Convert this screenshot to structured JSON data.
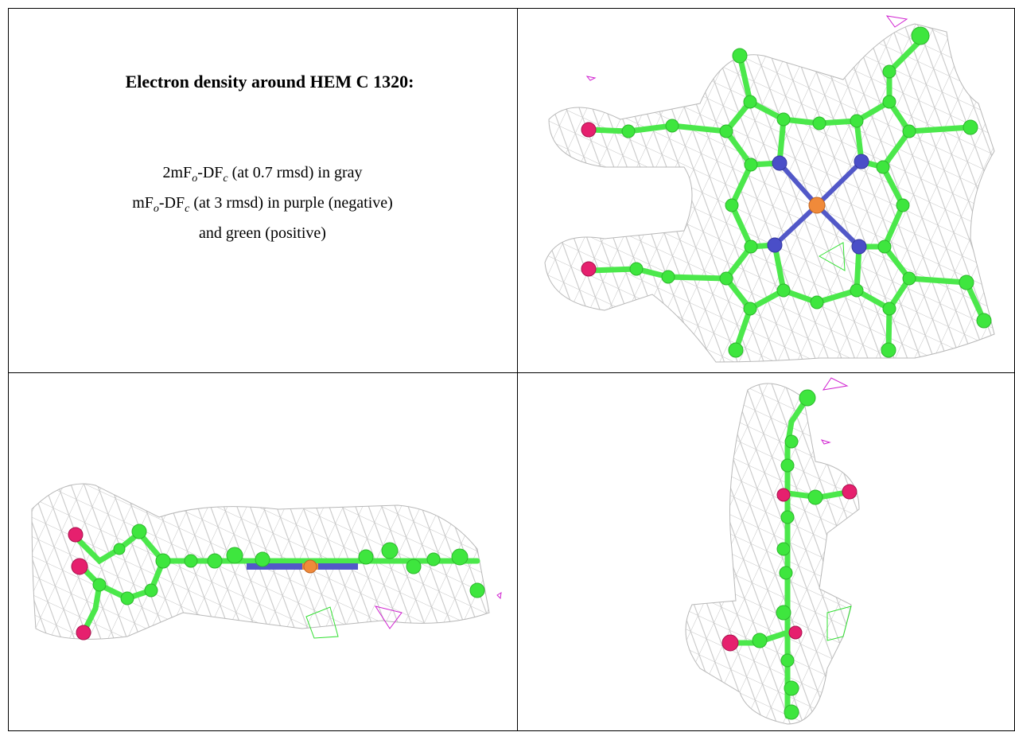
{
  "caption": {
    "title": "Electron density around HEM C 1320:",
    "lines": [
      [
        "2mF",
        "o",
        "-DF",
        "c",
        " (at 0.7 rmsd) in gray"
      ],
      [
        "mF",
        "o",
        "-DF",
        "c",
        " (at 3 rmsd) in purple (negative)"
      ],
      [
        "and green (positive)"
      ]
    ]
  }
}
